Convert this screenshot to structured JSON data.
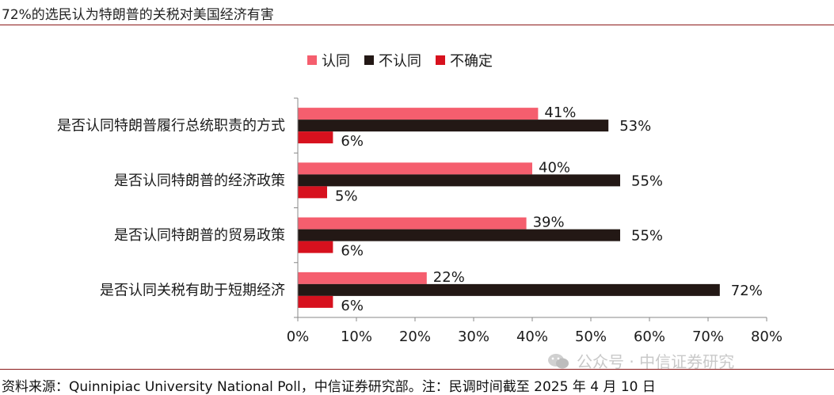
{
  "title": "72%的选民认为特朗普的关税对美国经济有害",
  "source": "资料来源：Quinnipiac University National Poll，中信证券研究部。注：民调时间截至 2025 年 4 月 10 日",
  "watermark": "公众号 · 中信证券研究",
  "colors": {
    "agree": "#f55e6e",
    "disagree": "#231815",
    "unsure": "#d7111e",
    "axis": "#888888",
    "rule": "#8b1a1a"
  },
  "chart_data": {
    "type": "bar",
    "orientation": "horizontal",
    "categories": [
      "是否认同特朗普履行总统职责的方式",
      "是否认同特朗普的经济政策",
      "是否认同特朗普的贸易政策",
      "是否认同关税有助于短期经济"
    ],
    "series": [
      {
        "name": "认同",
        "values": [
          41,
          40,
          39,
          22
        ]
      },
      {
        "name": "不认同",
        "values": [
          53,
          55,
          55,
          72
        ]
      },
      {
        "name": "不确定",
        "values": [
          6,
          5,
          6,
          6
        ]
      }
    ],
    "value_labels": [
      [
        "41%",
        "40%",
        "39%",
        "22%"
      ],
      [
        "53%",
        "55%",
        "55%",
        "72%"
      ],
      [
        "6%",
        "5%",
        "6%",
        "6%"
      ]
    ],
    "xlim": [
      0,
      80
    ],
    "xticks": [
      "0%",
      "10%",
      "20%",
      "30%",
      "40%",
      "50%",
      "60%",
      "70%",
      "80%"
    ],
    "xtick_values": [
      0,
      10,
      20,
      30,
      40,
      50,
      60,
      70,
      80
    ],
    "legend_position": "top",
    "grid": false
  }
}
